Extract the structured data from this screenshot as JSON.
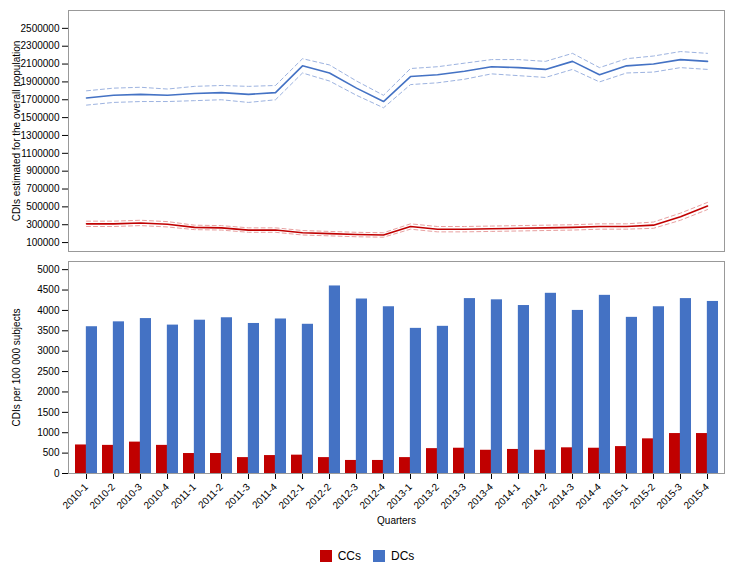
{
  "chart_data": [
    {
      "type": "line",
      "categories": [
        "2010-1",
        "2010-2",
        "2010-3",
        "2010-4",
        "2011-1",
        "2011-2",
        "2011-3",
        "2011-4",
        "2012-1",
        "2012-2",
        "2012-3",
        "2012-4",
        "2013-1",
        "2013-2",
        "2013-3",
        "2013-4",
        "2014-1",
        "2014-2",
        "2014-3",
        "2014-4",
        "2015-1",
        "2015-2",
        "2015-3",
        "2015-4"
      ],
      "series": [
        {
          "color": "#4472C4",
          "line_style": "solid",
          "values": [
            1720000,
            1750000,
            1760000,
            1750000,
            1770000,
            1780000,
            1760000,
            1780000,
            2080000,
            2000000,
            1830000,
            1680000,
            1960000,
            1980000,
            2020000,
            2070000,
            2060000,
            2040000,
            2130000,
            1980000,
            2080000,
            2100000,
            2150000,
            2130000
          ]
        },
        {
          "color": "#9DB3E0",
          "line_style": "dashed",
          "values": [
            1800000,
            1830000,
            1840000,
            1820000,
            1850000,
            1860000,
            1850000,
            1860000,
            2160000,
            2090000,
            1910000,
            1750000,
            2050000,
            2070000,
            2110000,
            2150000,
            2150000,
            2130000,
            2220000,
            2060000,
            2160000,
            2190000,
            2240000,
            2220000
          ]
        },
        {
          "color": "#9DB3E0",
          "line_style": "dashed",
          "values": [
            1640000,
            1670000,
            1680000,
            1680000,
            1690000,
            1700000,
            1670000,
            1700000,
            2000000,
            1910000,
            1750000,
            1610000,
            1870000,
            1890000,
            1930000,
            1990000,
            1970000,
            1950000,
            2040000,
            1900000,
            2000000,
            2010000,
            2060000,
            2040000
          ]
        },
        {
          "color": "#C00000",
          "line_style": "solid",
          "values": [
            310000,
            310000,
            320000,
            305000,
            270000,
            265000,
            240000,
            240000,
            210000,
            200000,
            190000,
            185000,
            280000,
            250000,
            250000,
            255000,
            260000,
            265000,
            270000,
            280000,
            280000,
            295000,
            390000,
            510000
          ]
        },
        {
          "color": "#E8A0A0",
          "line_style": "dashed",
          "values": [
            340000,
            340000,
            350000,
            335000,
            295000,
            290000,
            265000,
            265000,
            235000,
            225000,
            215000,
            210000,
            310000,
            280000,
            280000,
            285000,
            290000,
            295000,
            300000,
            310000,
            310000,
            330000,
            430000,
            550000
          ]
        },
        {
          "color": "#E8A0A0",
          "line_style": "dashed",
          "values": [
            280000,
            280000,
            290000,
            275000,
            245000,
            240000,
            215000,
            215000,
            185000,
            175000,
            165000,
            160000,
            250000,
            220000,
            220000,
            225000,
            230000,
            235000,
            240000,
            250000,
            250000,
            260000,
            350000,
            470000
          ]
        }
      ],
      "ylabel": "CDIs estimated for the overall population",
      "ylim": [
        0,
        2700000
      ],
      "yticks": [
        100000,
        300000,
        500000,
        700000,
        900000,
        1100000,
        1300000,
        1500000,
        1700000,
        1900000,
        2100000,
        2300000,
        2500000
      ],
      "tick_labels": "y",
      "grid": false
    },
    {
      "type": "bar",
      "categories": [
        "2010-1",
        "2010-2",
        "2010-3",
        "2010-4",
        "2011-1",
        "2011-2",
        "2011-3",
        "2011-4",
        "2012-1",
        "2012-2",
        "2012-3",
        "2012-4",
        "2013-1",
        "2013-2",
        "2013-3",
        "2013-4",
        "2014-1",
        "2014-2",
        "2014-3",
        "2014-4",
        "2015-1",
        "2015-2",
        "2015-3",
        "2015-4"
      ],
      "series": [
        {
          "name": "CCs",
          "color": "#C00000",
          "values": [
            700,
            690,
            770,
            690,
            490,
            490,
            390,
            440,
            450,
            390,
            320,
            320,
            390,
            610,
            620,
            570,
            590,
            570,
            630,
            620,
            660,
            850,
            980,
            980
          ]
        },
        {
          "name": "DCs",
          "color": "#4472C4",
          "values": [
            3600,
            3720,
            3800,
            3640,
            3760,
            3820,
            3680,
            3790,
            3660,
            4600,
            4280,
            4090,
            3560,
            3610,
            4290,
            4260,
            4120,
            4420,
            4000,
            4370,
            3830,
            4090,
            4290,
            4220
          ]
        }
      ],
      "xlabel": "Quarters",
      "ylabel": "CDIs per 100 000 subjects",
      "ylim": [
        0,
        5200
      ],
      "yticks": [
        0,
        500,
        1000,
        1500,
        2000,
        2500,
        3000,
        3500,
        4000,
        4500,
        5000
      ],
      "legend": "bottom",
      "grid": false
    }
  ]
}
